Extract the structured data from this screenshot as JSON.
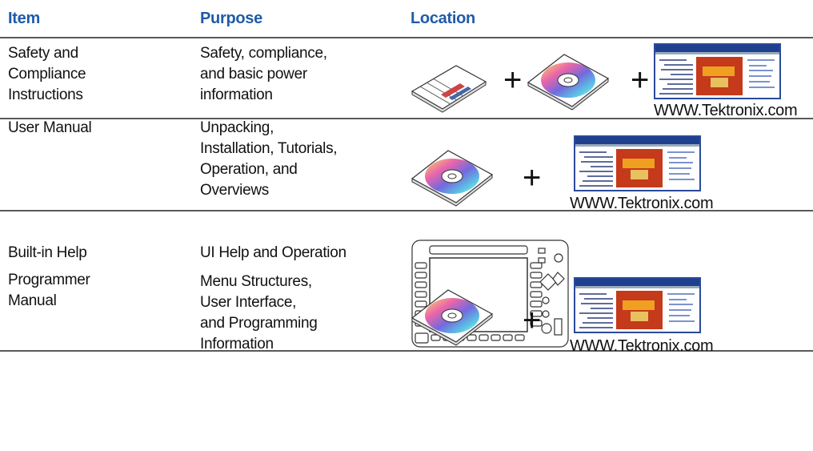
{
  "table": {
    "header": [
      "Item",
      "Purpose",
      "Location"
    ],
    "rows": [
      {
        "item": [
          "Safety and",
          "Compliance",
          "Instructions"
        ],
        "purpose": [
          "Safety, compliance,",
          "and basic power",
          "information"
        ],
        "location": [
          "+",
          "+",
          "WWW.Tektronix.com"
        ]
      },
      {
        "item": [
          "User Manual"
        ],
        "purpose": [
          "Unpacking,",
          "Installation, Tutorials,",
          "Operation,  and",
          "Overviews"
        ],
        "location": [
          "+",
          "WWW.Tektronix.com"
        ]
      },
      {
        "item": [
          "Built-in Help"
        ],
        "purpose": [
          "UI Help and Operation"
        ],
        "location": []
      },
      {
        "item": [
          "Programmer",
          "Manual"
        ],
        "purpose": [
          "Menu Structures,",
          "User Interface,",
          "and Programming",
          "Information"
        ],
        "location": [
          "+",
          "WWW.Tektronix.com"
        ]
      }
    ]
  }
}
